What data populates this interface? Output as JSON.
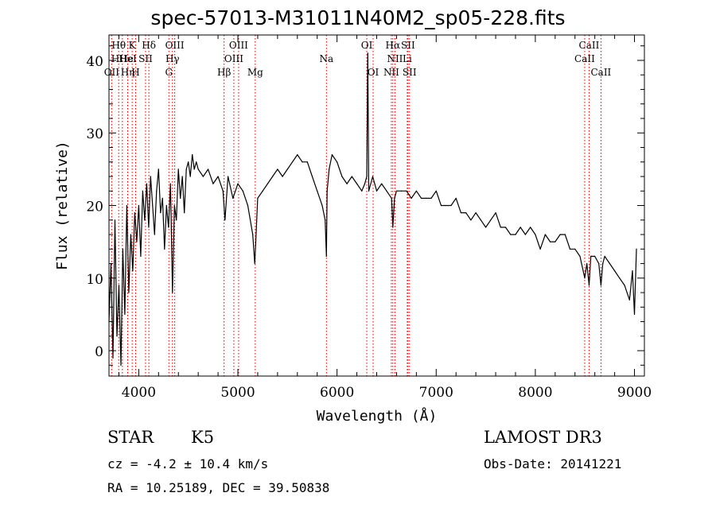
{
  "title": "spec-57013-M31011N40M2_sp05-228.fits",
  "footer": {
    "class": "STAR",
    "subclass": "K5",
    "survey": "LAMOST DR3",
    "cz": "cz = -4.2 ± 10.4 km/s",
    "obs_date": "Obs-Date: 20141221",
    "radec": "RA =  10.25189, DEC =  39.50838"
  },
  "chart_data": {
    "type": "line",
    "title": "spec-57013-M31011N40M2_sp05-228.fits",
    "xlabel": "Wavelength (Å)",
    "ylabel": "Flux (relative)",
    "xlim": [
      3700,
      9100
    ],
    "ylim": [
      -3.5,
      43.5
    ],
    "xticks": [
      4000,
      5000,
      6000,
      7000,
      8000,
      9000
    ],
    "yticks": [
      0,
      10,
      20,
      30,
      40
    ],
    "series": [
      {
        "name": "flux",
        "x": [
          3700,
          3720,
          3740,
          3760,
          3780,
          3800,
          3820,
          3840,
          3860,
          3880,
          3900,
          3920,
          3940,
          3960,
          3980,
          4000,
          4020,
          4040,
          4060,
          4080,
          4100,
          4120,
          4140,
          4160,
          4180,
          4200,
          4220,
          4240,
          4260,
          4280,
          4300,
          4320,
          4340,
          4360,
          4380,
          4400,
          4420,
          4440,
          4460,
          4480,
          4500,
          4520,
          4540,
          4560,
          4580,
          4600,
          4650,
          4700,
          4750,
          4800,
          4850,
          4870,
          4900,
          4950,
          5000,
          5050,
          5100,
          5150,
          5170,
          5180,
          5200,
          5250,
          5300,
          5350,
          5400,
          5450,
          5500,
          5550,
          5600,
          5650,
          5700,
          5750,
          5800,
          5850,
          5880,
          5893,
          5900,
          5920,
          5950,
          6000,
          6050,
          6100,
          6150,
          6200,
          6250,
          6280,
          6300,
          6310,
          6320,
          6340,
          6360,
          6380,
          6400,
          6450,
          6500,
          6550,
          6563,
          6580,
          6600,
          6650,
          6700,
          6750,
          6800,
          6850,
          6900,
          6950,
          7000,
          7050,
          7100,
          7150,
          7200,
          7250,
          7300,
          7350,
          7400,
          7450,
          7500,
          7550,
          7600,
          7650,
          7700,
          7750,
          7800,
          7850,
          7900,
          7950,
          8000,
          8050,
          8100,
          8150,
          8200,
          8250,
          8300,
          8350,
          8400,
          8450,
          8498,
          8520,
          8542,
          8560,
          8600,
          8640,
          8662,
          8680,
          8700,
          8750,
          8800,
          8850,
          8900,
          8950,
          8980,
          9000,
          9020
        ],
        "y": [
          4,
          12,
          -1,
          18,
          2,
          9,
          -2,
          14,
          5,
          20,
          8,
          16,
          11,
          19,
          15,
          20,
          13,
          22,
          18,
          23,
          17,
          24,
          20,
          16,
          22,
          25,
          19,
          21,
          14,
          20,
          17,
          23,
          8,
          20,
          18,
          25,
          21,
          24,
          19,
          25,
          26,
          24,
          27,
          25,
          26,
          25,
          24,
          25,
          23,
          24,
          22,
          18,
          24,
          21,
          23,
          22,
          20,
          16,
          12,
          15,
          21,
          22,
          23,
          24,
          25,
          24,
          25,
          26,
          27,
          26,
          26,
          24,
          22,
          20,
          18,
          13,
          22,
          25,
          27,
          26,
          24,
          23,
          24,
          23,
          22,
          23,
          24,
          41,
          22,
          23,
          24,
          23,
          22,
          23,
          22,
          21,
          17,
          21,
          22,
          22,
          22,
          21,
          22,
          21,
          21,
          21,
          22,
          20,
          20,
          20,
          21,
          19,
          19,
          18,
          19,
          18,
          17,
          18,
          19,
          17,
          17,
          16,
          16,
          17,
          16,
          17,
          16,
          14,
          16,
          15,
          15,
          16,
          16,
          14,
          14,
          13,
          10,
          12,
          9,
          13,
          13,
          12,
          9,
          12,
          13,
          12,
          11,
          10,
          9,
          7,
          11,
          5,
          14
        ]
      }
    ],
    "lines": [
      {
        "label": "Hθ",
        "x": 3798,
        "row": 0
      },
      {
        "label": "HHe",
        "x": 3835,
        "row": 1
      },
      {
        "label": "OII",
        "x": 3727,
        "row": 2
      },
      {
        "label": "Hη",
        "x": 3889,
        "row": 2
      },
      {
        "label": "K",
        "x": 3934,
        "row": 0
      },
      {
        "label": "HeI",
        "x": 3889,
        "row": 1
      },
      {
        "label": "SII",
        "x": 4069,
        "row": 1
      },
      {
        "label": "H",
        "x": 3969,
        "row": 2
      },
      {
        "label": "Hδ",
        "x": 4102,
        "row": 0
      },
      {
        "label": "OIII",
        "x": 4363,
        "row": 0
      },
      {
        "label": "Hγ",
        "x": 4340,
        "row": 1
      },
      {
        "label": "G",
        "x": 4304,
        "row": 2
      },
      {
        "label": "OIII",
        "x": 5007,
        "row": 0
      },
      {
        "label": "OIII",
        "x": 4959,
        "row": 1
      },
      {
        "label": "Hβ",
        "x": 4861,
        "row": 2
      },
      {
        "label": "Mg",
        "x": 5175,
        "row": 2
      },
      {
        "label": "Na",
        "x": 5893,
        "row": 1
      },
      {
        "label": "OI",
        "x": 6300,
        "row": 0
      },
      {
        "label": "OI",
        "x": 6364,
        "row": 2
      },
      {
        "label": "Hα",
        "x": 6563,
        "row": 0
      },
      {
        "label": "SII",
        "x": 6716,
        "row": 0
      },
      {
        "label": "NII",
        "x": 6584,
        "row": 1
      },
      {
        "label": "Li",
        "x": 6708,
        "row": 1
      },
      {
        "label": "NII",
        "x": 6548,
        "row": 2
      },
      {
        "label": "SII",
        "x": 6731,
        "row": 2
      },
      {
        "label": "CaII",
        "x": 8542,
        "row": 0
      },
      {
        "label": "CaII",
        "x": 8498,
        "row": 1
      },
      {
        "label": "CaII",
        "x": 8662,
        "row": 2
      }
    ]
  }
}
